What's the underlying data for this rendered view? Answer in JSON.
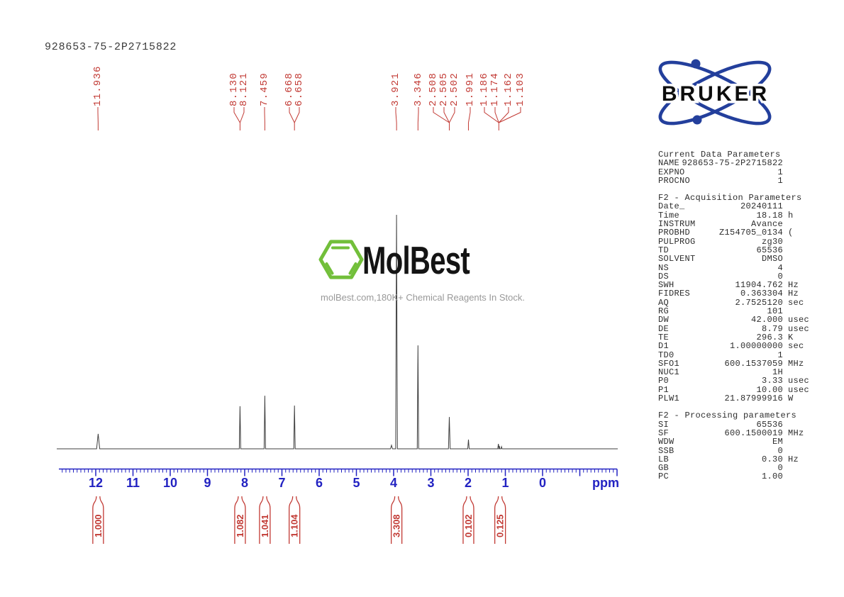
{
  "title": "928653-75-2P2715822",
  "colors": {
    "label_red": "#c23a34",
    "axis_blue": "#2222c2",
    "trace": "#3f3f3f",
    "param_text": "#2e2e2e",
    "hexagon_green": "#72bf3a",
    "bruker_navy": "#233f9c",
    "tagline_gray": "#999999"
  },
  "watermark": {
    "brand": "MolBest",
    "tagline": "molBest.com,180K+ Chemical Reagents In Stock."
  },
  "bruker_logo": {
    "text": "BRUKER"
  },
  "chart_data": {
    "type": "line",
    "title": "1H NMR spectrum 928653-75-2P2715822",
    "xlabel": "ppm",
    "x_axis": {
      "min": -2.0,
      "max": 13.0,
      "tick_labels": [
        12,
        11,
        10,
        9,
        8,
        7,
        6,
        5,
        4,
        3,
        2,
        1,
        0
      ],
      "minor_tick_step": 0.1
    },
    "peak_shift_labels": [
      "11.936",
      "8.130",
      "8.121",
      "7.459",
      "6.668",
      "6.658",
      "3.921",
      "3.346",
      "2.508",
      "2.505",
      "2.502",
      "1.991",
      "1.186",
      "1.174",
      "1.162",
      "1.103"
    ],
    "label_groups": [
      {
        "labels": [
          "11.936"
        ],
        "x": [
          138
        ],
        "target_ppm": 11.936
      },
      {
        "labels": [
          "8.130",
          "8.121"
        ],
        "x": [
          330,
          344
        ],
        "target_ppm": 8.125
      },
      {
        "labels": [
          "7.459"
        ],
        "x": [
          373
        ],
        "target_ppm": 7.459
      },
      {
        "labels": [
          "6.668",
          "6.658"
        ],
        "x": [
          408,
          422
        ],
        "target_ppm": 6.663
      },
      {
        "labels": [
          "3.921"
        ],
        "x": [
          558
        ],
        "target_ppm": 3.921
      },
      {
        "labels": [
          "3.346"
        ],
        "x": [
          590
        ],
        "target_ppm": 3.346
      },
      {
        "labels": [
          "2.508",
          "2.505",
          "2.502"
        ],
        "x": [
          611,
          626,
          641
        ],
        "target_ppm": 2.505
      },
      {
        "labels": [
          "1.991"
        ],
        "x": [
          663
        ],
        "target_ppm": 1.991
      },
      {
        "labels": [
          "1.186",
          "1.174",
          "1.162",
          "1.103"
        ],
        "x": [
          683,
          698,
          717,
          734
        ],
        "target_ppm": 1.175
      }
    ],
    "peaks": [
      {
        "ppm": 11.936,
        "rel": 0.064,
        "hw": 2.2
      },
      {
        "ppm": 8.125,
        "rel": 0.182,
        "hw": 1.0
      },
      {
        "ppm": 7.459,
        "rel": 0.227,
        "hw": 1.0
      },
      {
        "ppm": 6.663,
        "rel": 0.185,
        "hw": 1.0
      },
      {
        "ppm": 4.057,
        "rel": 0.015,
        "hw": 1.4
      },
      {
        "ppm": 3.921,
        "rel": 1.0,
        "hw": 1.2
      },
      {
        "ppm": 3.346,
        "rel": 0.442,
        "hw": 1.0
      },
      {
        "ppm": 2.505,
        "rel": 0.136,
        "hw": 1.2
      },
      {
        "ppm": 1.991,
        "rel": 0.039,
        "hw": 1.0
      },
      {
        "ppm": 1.186,
        "rel": 0.021,
        "hw": 0.9
      },
      {
        "ppm": 1.162,
        "rel": 0.012,
        "hw": 0.8
      },
      {
        "ppm": 1.103,
        "rel": 0.009,
        "hw": 0.8
      }
    ],
    "integrals": [
      {
        "value": "1.000",
        "ppm": 11.936
      },
      {
        "value": "1.082",
        "ppm": 8.125
      },
      {
        "value": "1.041",
        "ppm": 7.459
      },
      {
        "value": "1.104",
        "ppm": 6.663
      },
      {
        "value": "3.308",
        "ppm": 3.921
      },
      {
        "value": "0.102",
        "ppm": 1.991
      },
      {
        "value": "0.125",
        "ppm": 1.14
      }
    ]
  },
  "parameters": {
    "sections": [
      {
        "header": "Current Data Parameters",
        "rows": [
          [
            "NAME",
            "928653-75-2P2715822",
            ""
          ],
          [
            "EXPNO",
            "1",
            ""
          ],
          [
            "PROCNO",
            "1",
            ""
          ]
        ]
      },
      {
        "header": "F2 - Acquisition Parameters",
        "rows": [
          [
            "Date_",
            "20240111",
            ""
          ],
          [
            "Time",
            "18.18",
            "h"
          ],
          [
            "INSTRUM",
            "Avance",
            ""
          ],
          [
            "PROBHD",
            "Z154705_0134",
            "("
          ],
          [
            "PULPROG",
            "zg30",
            ""
          ],
          [
            "TD",
            "65536",
            ""
          ],
          [
            "SOLVENT",
            "DMSO",
            ""
          ],
          [
            "NS",
            "4",
            ""
          ],
          [
            "DS",
            "0",
            ""
          ],
          [
            "SWH",
            "11904.762",
            "Hz"
          ],
          [
            "FIDRES",
            "0.363304",
            "Hz"
          ],
          [
            "AQ",
            "2.7525120",
            "sec"
          ],
          [
            "RG",
            "101",
            ""
          ],
          [
            "DW",
            "42.000",
            "usec"
          ],
          [
            "DE",
            "8.79",
            "usec"
          ],
          [
            "TE",
            "296.3",
            "K"
          ],
          [
            "D1",
            "1.00000000",
            "sec"
          ],
          [
            "TD0",
            "1",
            ""
          ],
          [
            "SFO1",
            "600.1537059",
            "MHz"
          ],
          [
            "NUC1",
            "1H",
            ""
          ],
          [
            "P0",
            "3.33",
            "usec"
          ],
          [
            "P1",
            "10.00",
            "usec"
          ],
          [
            "PLW1",
            "21.87999916",
            "W"
          ]
        ]
      },
      {
        "header": "F2 - Processing parameters",
        "rows": [
          [
            "SI",
            "65536",
            ""
          ],
          [
            "SF",
            "600.1500019",
            "MHz"
          ],
          [
            "WDW",
            "EM",
            ""
          ],
          [
            "SSB",
            "0",
            ""
          ],
          [
            "LB",
            "0.30",
            "Hz"
          ],
          [
            "GB",
            "0",
            ""
          ],
          [
            "PC",
            "1.00",
            ""
          ]
        ]
      }
    ]
  }
}
